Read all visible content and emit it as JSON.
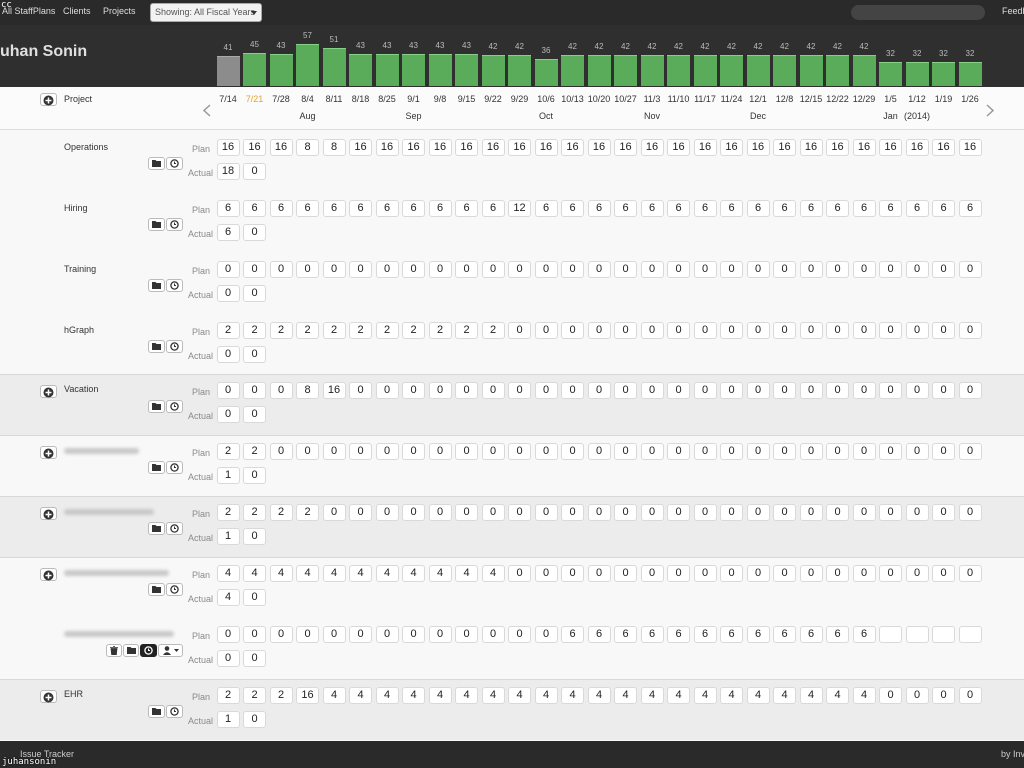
{
  "corner_mark": "cc",
  "nav": {
    "links": [
      "All StaffPlans",
      "Clients",
      "Projects"
    ],
    "filter": "Showing: All Fiscal Years",
    "feedback": "Feedb"
  },
  "user": {
    "name": "uhan Sonin"
  },
  "chart_data": {
    "type": "bar",
    "categories": [
      "7/14",
      "7/21",
      "7/28",
      "8/4",
      "8/11",
      "8/18",
      "8/25",
      "9/1",
      "9/8",
      "9/15",
      "9/22",
      "9/29",
      "10/6",
      "10/13",
      "10/20",
      "10/27",
      "11/3",
      "11/10",
      "11/17",
      "11/24",
      "12/1",
      "12/8",
      "12/15",
      "12/22",
      "12/29",
      "1/5",
      "1/12",
      "1/19",
      "1/26"
    ],
    "values": [
      41,
      45,
      43,
      57,
      51,
      43,
      43,
      43,
      43,
      43,
      42,
      42,
      36,
      42,
      42,
      42,
      42,
      42,
      42,
      42,
      42,
      42,
      42,
      42,
      42,
      32,
      32,
      32,
      32
    ],
    "month_labels": [
      null,
      null,
      null,
      "Aug",
      null,
      null,
      null,
      "Sep",
      null,
      null,
      null,
      null,
      "Oct",
      null,
      null,
      null,
      "Nov",
      null,
      null,
      null,
      "Dec",
      null,
      null,
      null,
      null,
      "Jan",
      "(2014)",
      null,
      null
    ],
    "color": "#5aab5a"
  },
  "header_row": {
    "label": "Project"
  },
  "row_labels": {
    "plan": "Plan",
    "actual": "Actual"
  },
  "groups": [
    {
      "projects": [
        {
          "name": "Operations",
          "plan": [
            16,
            16,
            16,
            8,
            8,
            16,
            16,
            16,
            16,
            16,
            16,
            16,
            16,
            16,
            16,
            16,
            16,
            16,
            16,
            16,
            16,
            16,
            16,
            16,
            16,
            16,
            16,
            16,
            16
          ],
          "actual": [
            18,
            0
          ]
        },
        {
          "name": "Hiring",
          "plan": [
            6,
            6,
            6,
            6,
            6,
            6,
            6,
            6,
            6,
            6,
            6,
            12,
            6,
            6,
            6,
            6,
            6,
            6,
            6,
            6,
            6,
            6,
            6,
            6,
            6,
            6,
            6,
            6,
            6
          ],
          "actual": [
            6,
            0
          ]
        },
        {
          "name": "Training",
          "plan": [
            0,
            0,
            0,
            0,
            0,
            0,
            0,
            0,
            0,
            0,
            0,
            0,
            0,
            0,
            0,
            0,
            0,
            0,
            0,
            0,
            0,
            0,
            0,
            0,
            0,
            0,
            0,
            0,
            0
          ],
          "actual": [
            0,
            0
          ]
        },
        {
          "name": "hGraph",
          "plan": [
            2,
            2,
            2,
            2,
            2,
            2,
            2,
            2,
            2,
            2,
            2,
            0,
            0,
            0,
            0,
            0,
            0,
            0,
            0,
            0,
            0,
            0,
            0,
            0,
            0,
            0,
            0,
            0,
            0
          ],
          "actual": [
            0,
            0
          ]
        }
      ]
    },
    {
      "name": "Vacation",
      "projects": [
        {
          "plan": [
            0,
            0,
            0,
            8,
            16,
            0,
            0,
            0,
            0,
            0,
            0,
            0,
            0,
            0,
            0,
            0,
            0,
            0,
            0,
            0,
            0,
            0,
            0,
            0,
            0,
            0,
            0,
            0,
            0
          ],
          "actual": [
            0,
            0
          ]
        }
      ]
    },
    {
      "projects": [
        {
          "plan": [
            2,
            2,
            0,
            0,
            0,
            0,
            0,
            0,
            0,
            0,
            0,
            0,
            0,
            0,
            0,
            0,
            0,
            0,
            0,
            0,
            0,
            0,
            0,
            0,
            0,
            0,
            0,
            0,
            0
          ],
          "actual": [
            1,
            0
          ]
        }
      ]
    },
    {
      "projects": [
        {
          "plan": [
            2,
            2,
            2,
            2,
            0,
            0,
            0,
            0,
            0,
            0,
            0,
            0,
            0,
            0,
            0,
            0,
            0,
            0,
            0,
            0,
            0,
            0,
            0,
            0,
            0,
            0,
            0,
            0,
            0
          ],
          "actual": [
            1,
            0
          ]
        }
      ]
    },
    {
      "projects": [
        {
          "plan": [
            4,
            4,
            4,
            4,
            4,
            4,
            4,
            4,
            4,
            4,
            4,
            0,
            0,
            0,
            0,
            0,
            0,
            0,
            0,
            0,
            0,
            0,
            0,
            0,
            0,
            0,
            0,
            0,
            0
          ],
          "actual": [
            4,
            0
          ]
        },
        {
          "plan": [
            0,
            0,
            0,
            0,
            0,
            0,
            0,
            0,
            0,
            0,
            0,
            0,
            0,
            6,
            6,
            6,
            6,
            6,
            6,
            6,
            6,
            6,
            6,
            6,
            6,
            null,
            null,
            null,
            null
          ],
          "actual": [
            0,
            0
          ]
        }
      ]
    },
    {
      "name": "EHR",
      "projects": [
        {
          "plan": [
            2,
            2,
            2,
            16,
            4,
            4,
            4,
            4,
            4,
            4,
            4,
            4,
            4,
            4,
            4,
            4,
            4,
            4,
            4,
            4,
            4,
            4,
            4,
            4,
            4,
            0,
            0,
            0,
            0
          ],
          "actual": [
            1,
            0
          ]
        }
      ]
    }
  ],
  "footer": {
    "left": "Issue Tracker",
    "right": "by Inv"
  },
  "watermark": "juhansonin"
}
